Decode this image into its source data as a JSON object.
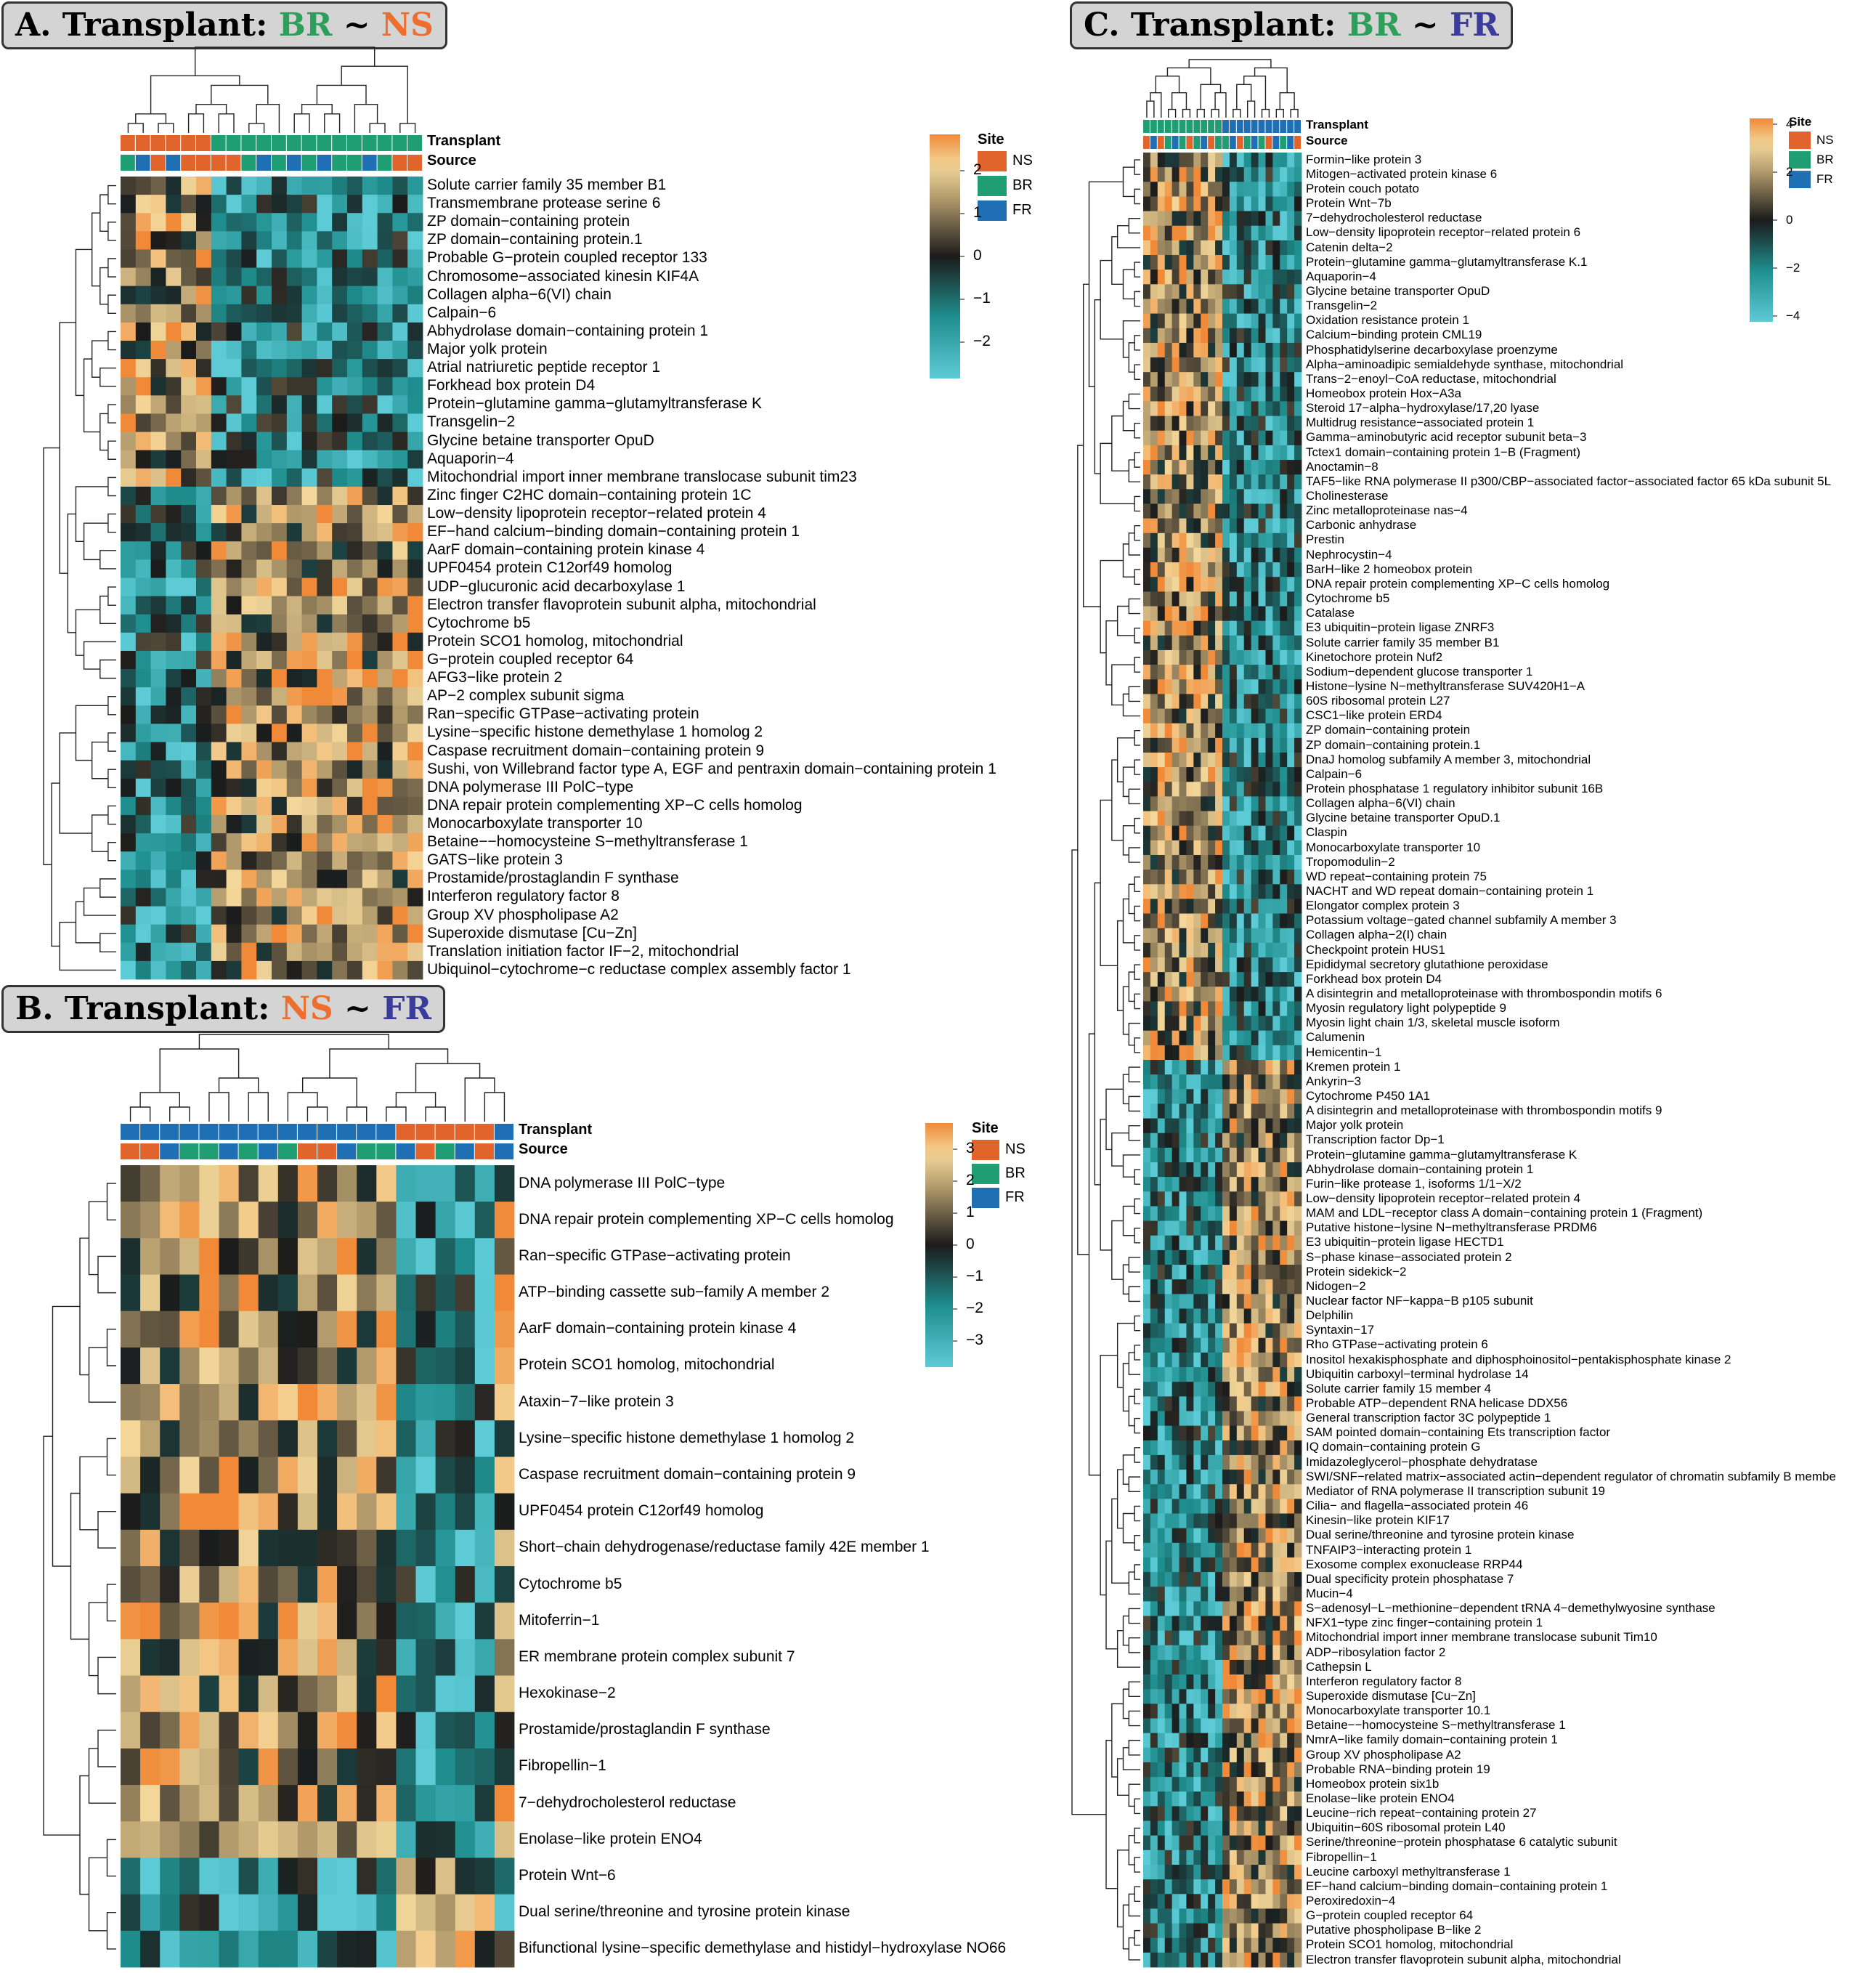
{
  "colors": {
    "NS": "#e0642c",
    "BR": "#1f9e73",
    "FR": "#1f6fb5",
    "low": "#5ccbd6",
    "mid": "#1b1b1b",
    "high": "#f08a38",
    "midhigh": "#f3d79a",
    "midlow": "#1f8f8f"
  },
  "panels": {
    "A": {
      "title_prefix": "A. Transplant: ",
      "t1": "BR",
      "sep": " ~ ",
      "t2": "NS"
    },
    "B": {
      "title_prefix": "B. Transplant: ",
      "t1": "NS",
      "sep": " ~ ",
      "t2": "FR"
    },
    "C": {
      "title_prefix": "C. Transplant: ",
      "t1": "BR",
      "sep": " ~ ",
      "t2": "FR"
    }
  },
  "annotation_labels": {
    "transplant": "Transplant",
    "source": "Source"
  },
  "legend": {
    "title": "Site",
    "items": [
      "NS",
      "BR",
      "FR"
    ]
  },
  "chart_data": [
    {
      "type": "heatmap",
      "panel": "A",
      "scale_ticks": [
        "2",
        "1",
        "0",
        "−1",
        "−2"
      ],
      "n_cols": 20,
      "transplant": [
        "NS",
        "NS",
        "NS",
        "NS",
        "NS",
        "NS",
        "BR",
        "BR",
        "BR",
        "BR",
        "BR",
        "BR",
        "BR",
        "BR",
        "BR",
        "BR",
        "BR",
        "BR",
        "BR",
        "BR"
      ],
      "source": [
        "BR",
        "FR",
        "NS",
        "FR",
        "NS",
        "NS",
        "NS",
        "NS",
        "BR",
        "FR",
        "BR",
        "FR",
        "BR",
        "FR",
        "BR",
        "BR",
        "FR",
        "BR",
        "NS",
        "NS"
      ],
      "rows": [
        "Solute carrier family 35 member B1",
        "Transmembrane protease serine 6",
        "ZP domain−containing protein",
        "ZP domain−containing protein.1",
        "Probable G−protein coupled receptor 133",
        "Chromosome−associated kinesin KIF4A",
        "Collagen alpha−6(VI) chain",
        "Calpain−6",
        "Abhydrolase domain−containing protein 1",
        "Major yolk protein",
        "Atrial natriuretic peptide receptor 1",
        "Forkhead box protein D4",
        "Protein−glutamine gamma−glutamyltransferase K",
        "Transgelin−2",
        "Glycine betaine transporter OpuD",
        "Aquaporin−4",
        "Mitochondrial import inner membrane translocase subunit tim23",
        "Zinc finger C2HC domain−containing protein 1C",
        "Low−density lipoprotein receptor−related protein 4",
        "EF−hand calcium−binding domain−containing protein 1",
        "AarF domain−containing protein kinase 4",
        "UPF0454 protein C12orf49 homolog",
        "UDP−glucuronic acid decarboxylase 1",
        "Electron transfer flavoprotein subunit alpha, mitochondrial",
        "Cytochrome b5",
        "Protein SCO1 homolog, mitochondrial",
        "G−protein coupled receptor 64",
        "AFG3−like protein 2",
        "AP−2 complex subunit sigma",
        "Ran−specific GTPase−activating protein",
        "Lysine−specific histone demethylase 1 homolog 2",
        "Caspase recruitment domain−containing protein 9",
        "Sushi, von Willebrand factor type A, EGF and pentraxin domain−containing protein 1",
        "DNA polymerase III PolC−type",
        "DNA repair protein complementing XP−C cells homolog",
        "Monocarboxylate transporter 10",
        "Betaine−−homocysteine S−methyltransferase 1",
        "GATS−like protein 3",
        "Prostamide/prostaglandin F synthase",
        "Interferon regulatory factor 8",
        "Group XV phospholipase A2",
        "Superoxide dismutase [Cu−Zn]",
        "Translation initiation factor IF−2, mitochondrial",
        "Ubiquinol−cytochrome−c reductase complex assembly factor 1"
      ]
    },
    {
      "type": "heatmap",
      "panel": "B",
      "scale_ticks": [
        "3",
        "2",
        "1",
        "0",
        "−1",
        "−2",
        "−3"
      ],
      "n_cols": 20,
      "transplant": [
        "FR",
        "FR",
        "FR",
        "FR",
        "FR",
        "FR",
        "FR",
        "FR",
        "FR",
        "FR",
        "FR",
        "FR",
        "FR",
        "FR",
        "NS",
        "NS",
        "NS",
        "NS",
        "NS",
        "FR"
      ],
      "source": [
        "NS",
        "NS",
        "FR",
        "BR",
        "BR",
        "FR",
        "BR",
        "FR",
        "BR",
        "NS",
        "NS",
        "FR",
        "BR",
        "BR",
        "FR",
        "NS",
        "BR",
        "FR",
        "NS",
        "FR"
      ],
      "rows": [
        "DNA polymerase III PolC−type",
        "DNA repair protein complementing XP−C cells homolog",
        "Ran−specific GTPase−activating protein",
        "ATP−binding cassette sub−family A member 2",
        "AarF domain−containing protein kinase 4",
        "Protein SCO1 homolog, mitochondrial",
        "Ataxin−7−like protein 3",
        "Lysine−specific histone demethylase 1 homolog 2",
        "Caspase recruitment domain−containing protein 9",
        "UPF0454 protein C12orf49 homolog",
        "Short−chain dehydrogenase/reductase family 42E member 1",
        "Cytochrome b5",
        "Mitoferrin−1",
        "ER membrane protein complex subunit 7",
        "Hexokinase−2",
        "Prostamide/prostaglandin F synthase",
        "Fibropellin−1",
        "7−dehydrocholesterol reductase",
        "Enolase−like protein ENO4",
        "Protein Wnt−6",
        "Dual serine/threonine and tyrosine protein kinase",
        "Bifunctional lysine−specific demethylase and histidyl−hydroxylase NO66"
      ]
    },
    {
      "type": "heatmap",
      "panel": "C",
      "scale_ticks": [
        "4",
        "2",
        "0",
        "−2",
        "−4"
      ],
      "n_cols": 22,
      "transplant": [
        "BR",
        "BR",
        "BR",
        "BR",
        "BR",
        "BR",
        "BR",
        "BR",
        "BR",
        "BR",
        "BR",
        "FR",
        "FR",
        "FR",
        "FR",
        "FR",
        "FR",
        "FR",
        "FR",
        "FR",
        "FR",
        "FR"
      ],
      "source": [
        "NS",
        "FR",
        "NS",
        "BR",
        "FR",
        "BR",
        "NS",
        "BR",
        "FR",
        "NS",
        "BR",
        "BR",
        "FR",
        "NS",
        "BR",
        "FR",
        "BR",
        "NS",
        "FR",
        "BR",
        "FR",
        "NS"
      ],
      "rows": [
        "Formin−like protein 3",
        "Mitogen−activated protein kinase 6",
        "Protein couch potato",
        "Protein Wnt−7b",
        "7−dehydrocholesterol reductase",
        "Low−density lipoprotein receptor−related protein 6",
        "Catenin delta−2",
        "Protein−glutamine gamma−glutamyltransferase K.1",
        "Aquaporin−4",
        "Glycine betaine transporter OpuD",
        "Transgelin−2",
        "Oxidation resistance protein 1",
        "Calcium−binding protein CML19",
        "Phosphatidylserine decarboxylase proenzyme",
        "Alpha−aminoadipic semialdehyde synthase, mitochondrial",
        "Trans−2−enoyl−CoA reductase, mitochondrial",
        "Homeobox protein Hox−A3a",
        "Steroid 17−alpha−hydroxylase/17,20 lyase",
        "Multidrug resistance−associated protein 1",
        "Gamma−aminobutyric acid receptor subunit beta−3",
        "Tctex1 domain−containing protein 1−B (Fragment)",
        "Anoctamin−8",
        "TAF5−like RNA polymerase II p300/CBP−associated factor−associated factor 65 kDa subunit 5L",
        "Cholinesterase",
        "Zinc metalloproteinase nas−4",
        "Carbonic anhydrase",
        "Prestin",
        "Nephrocystin−4",
        "BarH−like 2 homeobox protein",
        "DNA repair protein complementing XP−C cells homolog",
        "Cytochrome b5",
        "Catalase",
        "E3 ubiquitin−protein ligase ZNRF3",
        "Solute carrier family 35 member B1",
        "Kinetochore protein Nuf2",
        "Sodium−dependent glucose transporter 1",
        "Histone−lysine N−methyltransferase SUV420H1−A",
        "60S ribosomal protein L27",
        "CSC1−like protein ERD4",
        "ZP domain−containing protein",
        "ZP domain−containing protein.1",
        "DnaJ homolog subfamily A member 3, mitochondrial",
        "Calpain−6",
        "Protein phosphatase 1 regulatory inhibitor subunit 16B",
        "Collagen alpha−6(VI) chain",
        "Glycine betaine transporter OpuD.1",
        "Claspin",
        "Monocarboxylate transporter 10",
        "Tropomodulin−2",
        "WD repeat−containing protein 75",
        "NACHT and WD repeat domain−containing protein 1",
        "Elongator complex protein 3",
        "Potassium voltage−gated channel subfamily A member 3",
        "Collagen alpha−2(I) chain",
        "Checkpoint protein HUS1",
        "Epididymal secretory glutathione peroxidase",
        "Forkhead box protein D4",
        "A disintegrin and metalloproteinase with thrombospondin motifs 6",
        "Myosin regulatory light polypeptide 9",
        "Myosin light chain 1/3, skeletal muscle isoform",
        "Calumenin",
        "Hemicentin−1",
        "Kremen protein 1",
        "Ankyrin−3",
        "Cytochrome P450 1A1",
        "A disintegrin and metalloproteinase with thrombospondin motifs 9",
        "Major yolk protein",
        "Transcription factor Dp−1",
        "Protein−glutamine gamma−glutamyltransferase K",
        "Abhydrolase domain−containing protein 1",
        "Furin−like protease 1, isoforms 1/1−X/2",
        "Low−density lipoprotein receptor−related protein 4",
        "MAM and LDL−receptor class A domain−containing protein 1 (Fragment)",
        "Putative histone−lysine N−methyltransferase PRDM6",
        "E3 ubiquitin−protein ligase HECTD1",
        "S−phase kinase−associated protein 2",
        "Protein sidekick−2",
        "Nidogen−2",
        "Nuclear factor NF−kappa−B p105 subunit",
        "Delphilin",
        "Syntaxin−17",
        "Rho GTPase−activating protein 6",
        "Inositol hexakisphosphate and diphosphoinositol−pentakisphosphate kinase 2",
        "Ubiquitin carboxyl−terminal hydrolase 14",
        "Solute carrier family 15 member 4",
        "Probable ATP−dependent RNA helicase DDX56",
        "General transcription factor 3C polypeptide 1",
        "SAM pointed domain−containing Ets transcription factor",
        "IQ domain−containing protein G",
        "Imidazoleglycerol−phosphate dehydratase",
        "SWI/SNF−related matrix−associated actin−dependent regulator of chromatin subfamily B membe",
        "Mediator of RNA polymerase II transcription subunit 19",
        "Cilia− and flagella−associated protein 46",
        "Kinesin−like protein KIF17",
        "Dual serine/threonine and tyrosine protein kinase",
        "TNFAIP3−interacting protein 1",
        "Exosome complex exonuclease RRP44",
        "Dual specificity protein phosphatase 7",
        "Mucin−4",
        "S−adenosyl−L−methionine−dependent tRNA 4−demethylwyosine synthase",
        "NFX1−type zinc finger−containing protein 1",
        "Mitochondrial import inner membrane translocase subunit Tim10",
        "ADP−ribosylation factor 2",
        "Cathepsin L",
        "Interferon regulatory factor 8",
        "Superoxide dismutase [Cu−Zn]",
        "Monocarboxylate transporter 10.1",
        "Betaine−−homocysteine S−methyltransferase 1",
        "NmrA−like family domain−containing protein 1",
        "Group XV phospholipase A2",
        "Probable RNA−binding protein 19",
        "Homeobox protein six1b",
        "Enolase−like protein ENO4",
        "Leucine−rich repeat−containing protein 27",
        "Ubiquitin−60S ribosomal protein L40",
        "Serine/threonine−protein phosphatase 6 catalytic subunit",
        "Fibropellin−1",
        "Leucine carboxyl methyltransferase 1",
        "EF−hand calcium−binding domain−containing protein 1",
        "Peroxiredoxin−4",
        "G−protein coupled receptor 64",
        "Putative phospholipase B−like 2",
        "Protein SCO1 homolog, mitochondrial",
        "Electron transfer flavoprotein subunit alpha, mitochondrial"
      ]
    }
  ]
}
